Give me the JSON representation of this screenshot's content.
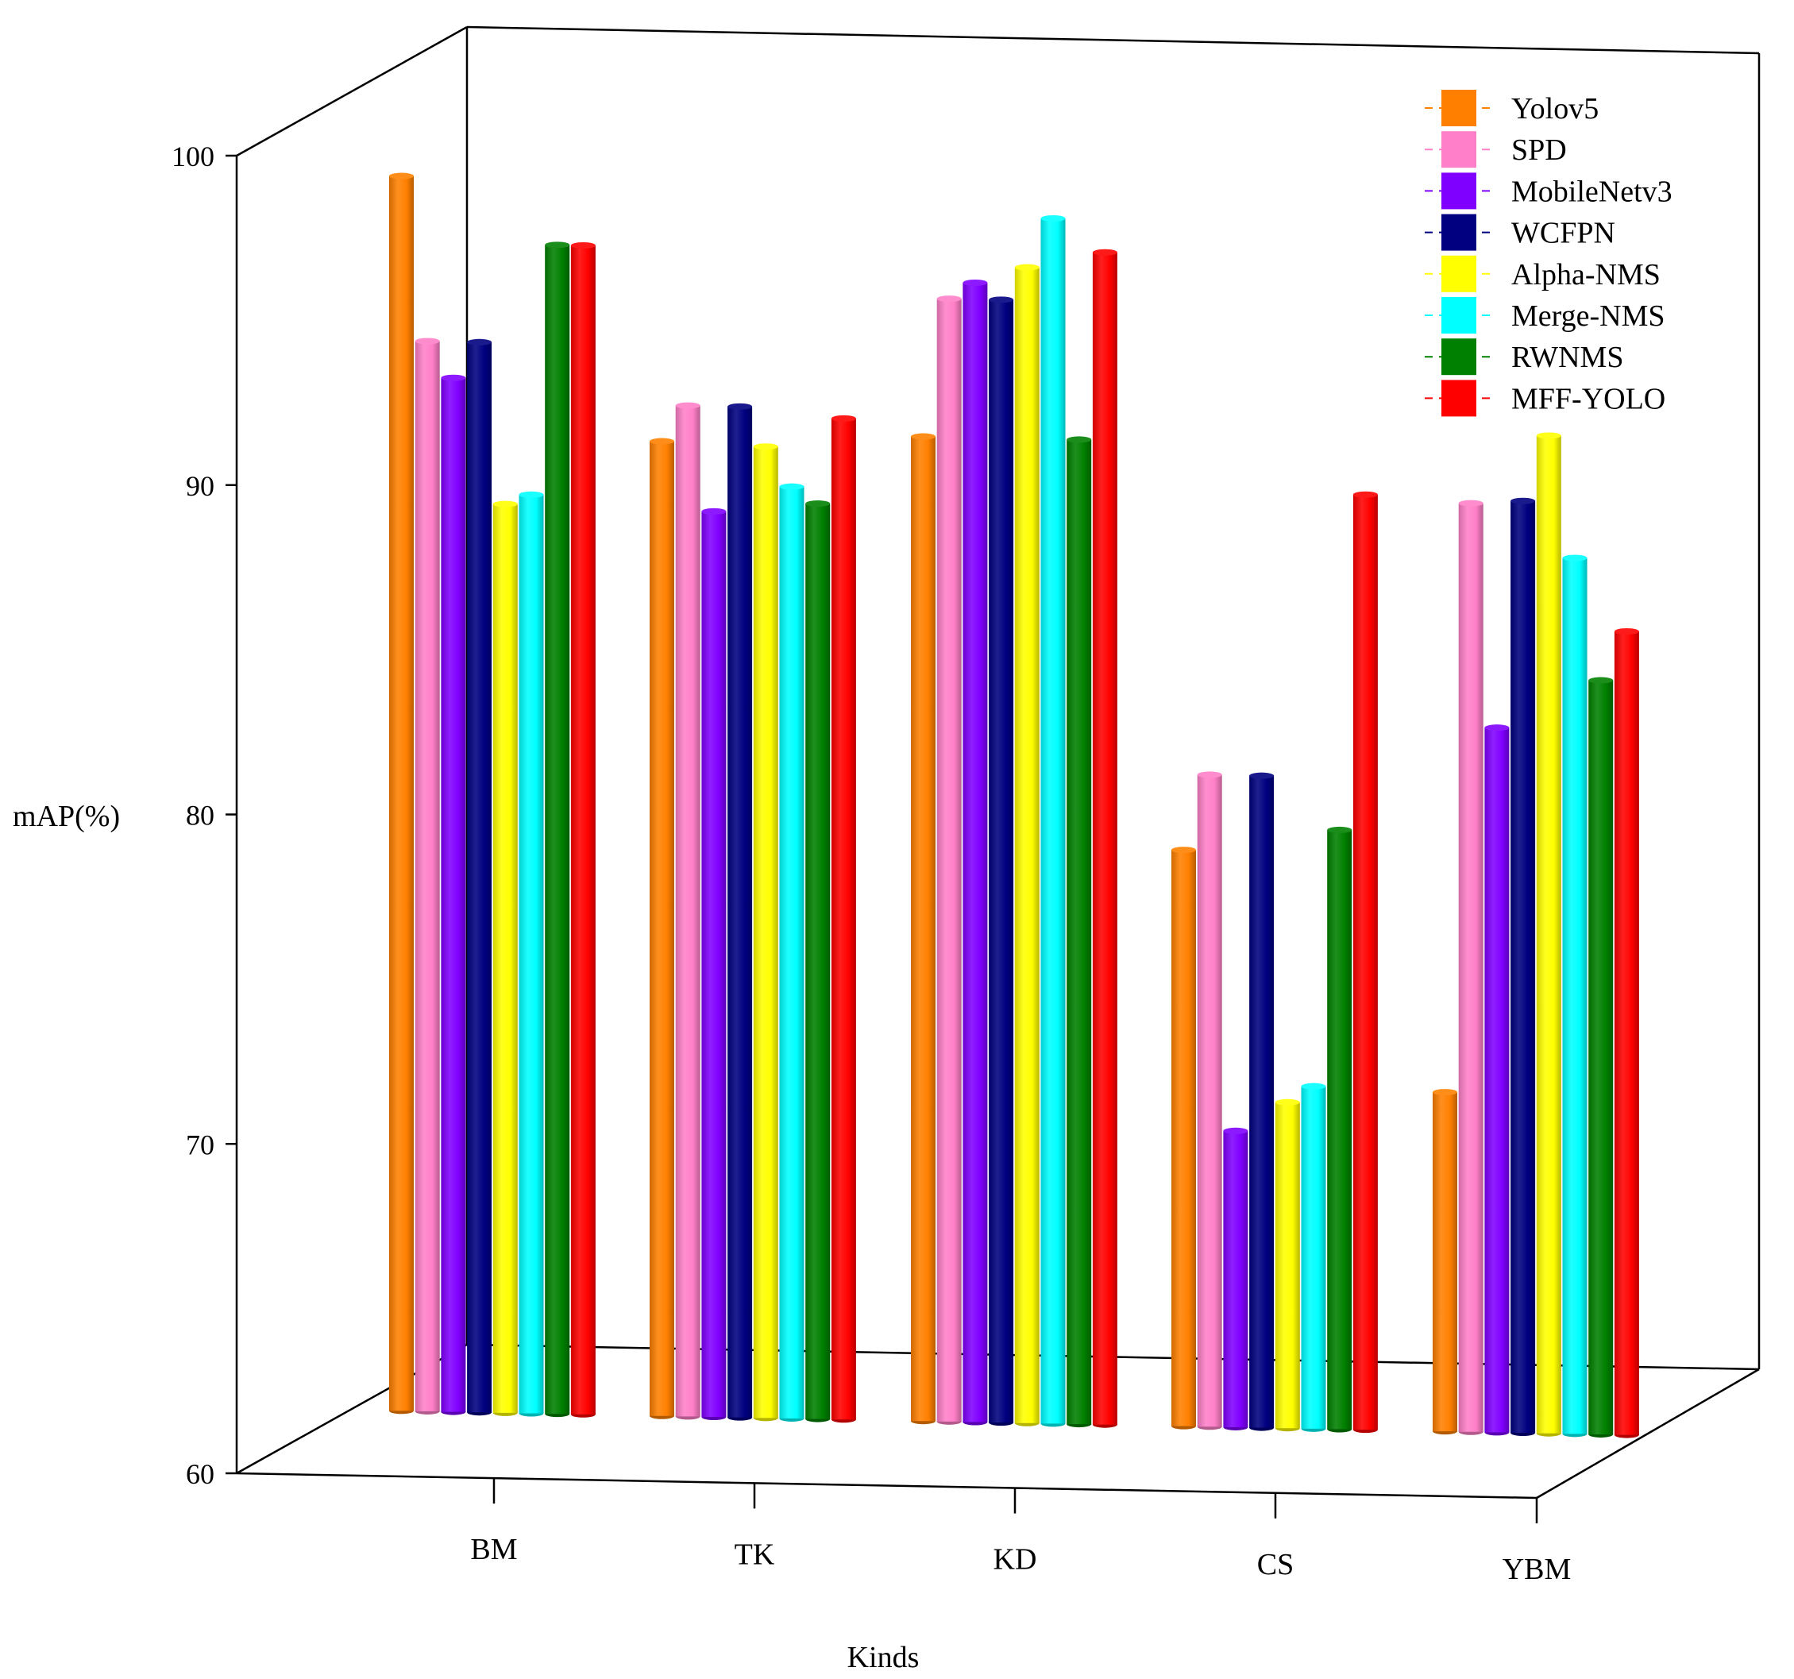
{
  "chart_data": {
    "type": "bar",
    "style": "3d-perspective-cylinders",
    "title": "",
    "xlabel": "Kinds",
    "ylabel": "mAP(%)",
    "ylim": [
      60,
      100
    ],
    "yticks": [
      60,
      70,
      80,
      90,
      100
    ],
    "legend_position": "top-right",
    "categories": [
      "BM",
      "TK",
      "KD",
      "CS",
      "YBM"
    ],
    "series": [
      {
        "name": "Yolov5",
        "color": "#ff8000",
        "values": [
          97.5,
          89.6,
          89.9,
          77.5,
          70.3
        ]
      },
      {
        "name": "SPD",
        "color": "#ff80c8",
        "values": [
          92.5,
          90.7,
          94.1,
          79.8,
          88.2
        ]
      },
      {
        "name": "MobileNetv3",
        "color": "#8000ff",
        "values": [
          91.4,
          87.5,
          94.6,
          69.0,
          81.4
        ]
      },
      {
        "name": "WCFPN",
        "color": "#000080",
        "values": [
          92.5,
          90.7,
          94.1,
          79.8,
          88.3
        ]
      },
      {
        "name": "Alpha-NMS",
        "color": "#ffff00",
        "values": [
          87.6,
          89.5,
          95.1,
          69.9,
          90.3
        ]
      },
      {
        "name": "Merge-NMS",
        "color": "#00ffff",
        "values": [
          87.9,
          88.3,
          96.6,
          70.4,
          86.6
        ]
      },
      {
        "name": "RWNMS",
        "color": "#008000",
        "values": [
          95.5,
          87.8,
          89.9,
          78.2,
          82.9
        ]
      },
      {
        "name": "MFF-YOLO",
        "color": "#ff0000",
        "values": [
          95.5,
          90.4,
          95.6,
          88.4,
          84.4
        ]
      }
    ]
  }
}
